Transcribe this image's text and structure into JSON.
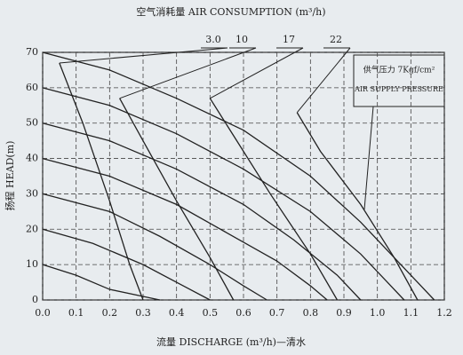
{
  "chart_data": {
    "type": "line",
    "title": "空气消耗量 AIR CONSUMPTION (m³/h)",
    "x_label": "流量 DISCHARGE (m³/h)—清水",
    "y_label": "扬程 HEAD(m)",
    "pressure_label": [
      "供气压力 7Kgf/cm²",
      "AIR SUPPLY PRESSURE"
    ],
    "xlim": [
      0,
      1.2
    ],
    "xticks": [
      {
        "value": 0,
        "label": "0.0"
      },
      0.1,
      0.2,
      0.3,
      0.4,
      0.5,
      0.6,
      0.7,
      0.8,
      0.9,
      {
        "value": 1,
        "label": "1.0"
      },
      1.1,
      1.2
    ],
    "ylim": [
      0,
      70
    ],
    "yticks": [
      0,
      10,
      20,
      30,
      40,
      50,
      60,
      70
    ],
    "grid": true,
    "series": [
      {
        "color": "#222222",
        "x": [
          0,
          0.2,
          0.4,
          0.6,
          0.8,
          0.95,
          1.05,
          1.12,
          1.17
        ],
        "values": [
          70,
          65,
          57,
          48,
          35,
          22,
          12,
          5,
          0
        ]
      },
      {
        "color": "#222222",
        "x": [
          0,
          0.2,
          0.4,
          0.6,
          0.8,
          0.95,
          1.03,
          1.08
        ],
        "values": [
          60,
          55,
          47,
          37,
          25,
          13,
          5,
          0
        ]
      },
      {
        "color": "#222222",
        "x": [
          0,
          0.2,
          0.4,
          0.6,
          0.75,
          0.88,
          0.95
        ],
        "values": [
          50,
          45,
          37,
          27,
          17,
          7,
          0
        ]
      },
      {
        "color": "#222222",
        "x": [
          0,
          0.2,
          0.4,
          0.55,
          0.7,
          0.8,
          0.85
        ],
        "values": [
          40,
          35,
          27,
          19,
          11,
          4,
          0
        ]
      },
      {
        "color": "#222222",
        "x": [
          0,
          0.2,
          0.35,
          0.5,
          0.6,
          0.67
        ],
        "values": [
          30,
          25,
          18,
          10,
          4,
          0
        ]
      },
      {
        "color": "#222222",
        "x": [
          0,
          0.15,
          0.3,
          0.42,
          0.5
        ],
        "values": [
          20,
          16,
          10,
          4,
          0
        ]
      },
      {
        "color": "#222222",
        "x": [
          0,
          0.1,
          0.2,
          0.3,
          0.35
        ],
        "values": [
          10,
          7,
          3,
          1,
          0
        ]
      },
      {
        "name": "3.0",
        "color": "#222222",
        "x": [
          0.05,
          0.12,
          0.2,
          0.26,
          0.3
        ],
        "values": [
          67,
          50,
          28,
          10,
          0
        ]
      },
      {
        "name": "10",
        "color": "#222222",
        "x": [
          0.23,
          0.3,
          0.4,
          0.5,
          0.57
        ],
        "values": [
          57,
          45,
          28,
          12,
          0
        ]
      },
      {
        "name": "17",
        "color": "#222222",
        "x": [
          0.5,
          0.58,
          0.68,
          0.8,
          0.88
        ],
        "values": [
          57,
          45,
          30,
          13,
          0
        ]
      },
      {
        "name": "22",
        "color": "#222222",
        "x": [
          0.76,
          0.83,
          0.95,
          1.05,
          1.12
        ],
        "values": [
          53,
          42,
          27,
          12,
          0
        ]
      }
    ]
  }
}
